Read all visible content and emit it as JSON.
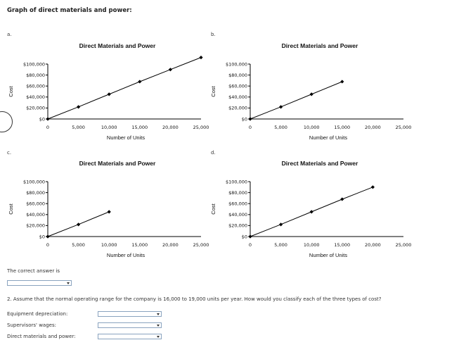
{
  "heading": "Graph of direct materials and power:",
  "panels": [
    {
      "label": "a."
    },
    {
      "label": "b."
    },
    {
      "label": "c."
    },
    {
      "label": "d."
    }
  ],
  "chart_data": [
    {
      "type": "line",
      "title": "Direct Materials and Power",
      "xlabel": "Number of Units",
      "ylabel": "Cost",
      "xlim": [
        0,
        25000
      ],
      "ylim": [
        0,
        100000
      ],
      "x_ticks": [
        "0",
        "5,000",
        "10,000",
        "15,000",
        "20,000",
        "25,000"
      ],
      "y_ticks": [
        "$0",
        "$20,000",
        "$40,000",
        "$60,000",
        "$80,000",
        "$100,000"
      ],
      "x": [
        0,
        5000,
        10000,
        15000,
        20000,
        25000
      ],
      "values": [
        0,
        22000,
        45000,
        68000,
        90000,
        112000
      ]
    },
    {
      "type": "line",
      "title": "Direct Materials and Power",
      "xlabel": "Number of Units",
      "ylabel": "Cost",
      "xlim": [
        0,
        25000
      ],
      "ylim": [
        0,
        100000
      ],
      "x_ticks": [
        "0",
        "5,000",
        "10,000",
        "15,000",
        "20,000",
        "25,000"
      ],
      "y_ticks": [
        "$0",
        "$20,000",
        "$40,000",
        "$60,000",
        "$80,000",
        "$100,000"
      ],
      "x": [
        0,
        5000,
        10000,
        15000
      ],
      "values": [
        0,
        22000,
        45000,
        68000
      ]
    },
    {
      "type": "line",
      "title": "Direct Materials and Power",
      "xlabel": "Number of Units",
      "ylabel": "Cost",
      "xlim": [
        0,
        25000
      ],
      "ylim": [
        0,
        100000
      ],
      "x_ticks": [
        "0",
        "5,000",
        "10,000",
        "15,000",
        "20,000",
        "25,000"
      ],
      "y_ticks": [
        "$0",
        "$20,000",
        "$40,000",
        "$60,000",
        "$80,000",
        "$100,000"
      ],
      "x": [
        0,
        5000,
        10000
      ],
      "values": [
        0,
        22000,
        45000
      ]
    },
    {
      "type": "line",
      "title": "Direct Materials and Power",
      "xlabel": "Number of Units",
      "ylabel": "Cost",
      "xlim": [
        0,
        25000
      ],
      "ylim": [
        0,
        100000
      ],
      "x_ticks": [
        "0",
        "5,000",
        "10,000",
        "15,000",
        "20,000",
        "25,000"
      ],
      "y_ticks": [
        "$0",
        "$20,000",
        "$40,000",
        "$60,000",
        "$80,000",
        "$100,000"
      ],
      "x": [
        0,
        5000,
        10000,
        15000,
        20000
      ],
      "values": [
        0,
        22000,
        45000,
        68000,
        90000
      ]
    }
  ],
  "answer": {
    "label": "The correct answer is",
    "selected": ""
  },
  "question2": {
    "text": "2. Assume that the normal operating range for the company is 16,000 to 19,000 units per year. How would you classify each of the three types of cost?",
    "rows": [
      {
        "label": "Equipment depreciation:",
        "selected": ""
      },
      {
        "label": "Supervisors' wages:",
        "selected": ""
      },
      {
        "label": "Direct materials and power:",
        "selected": ""
      }
    ]
  }
}
